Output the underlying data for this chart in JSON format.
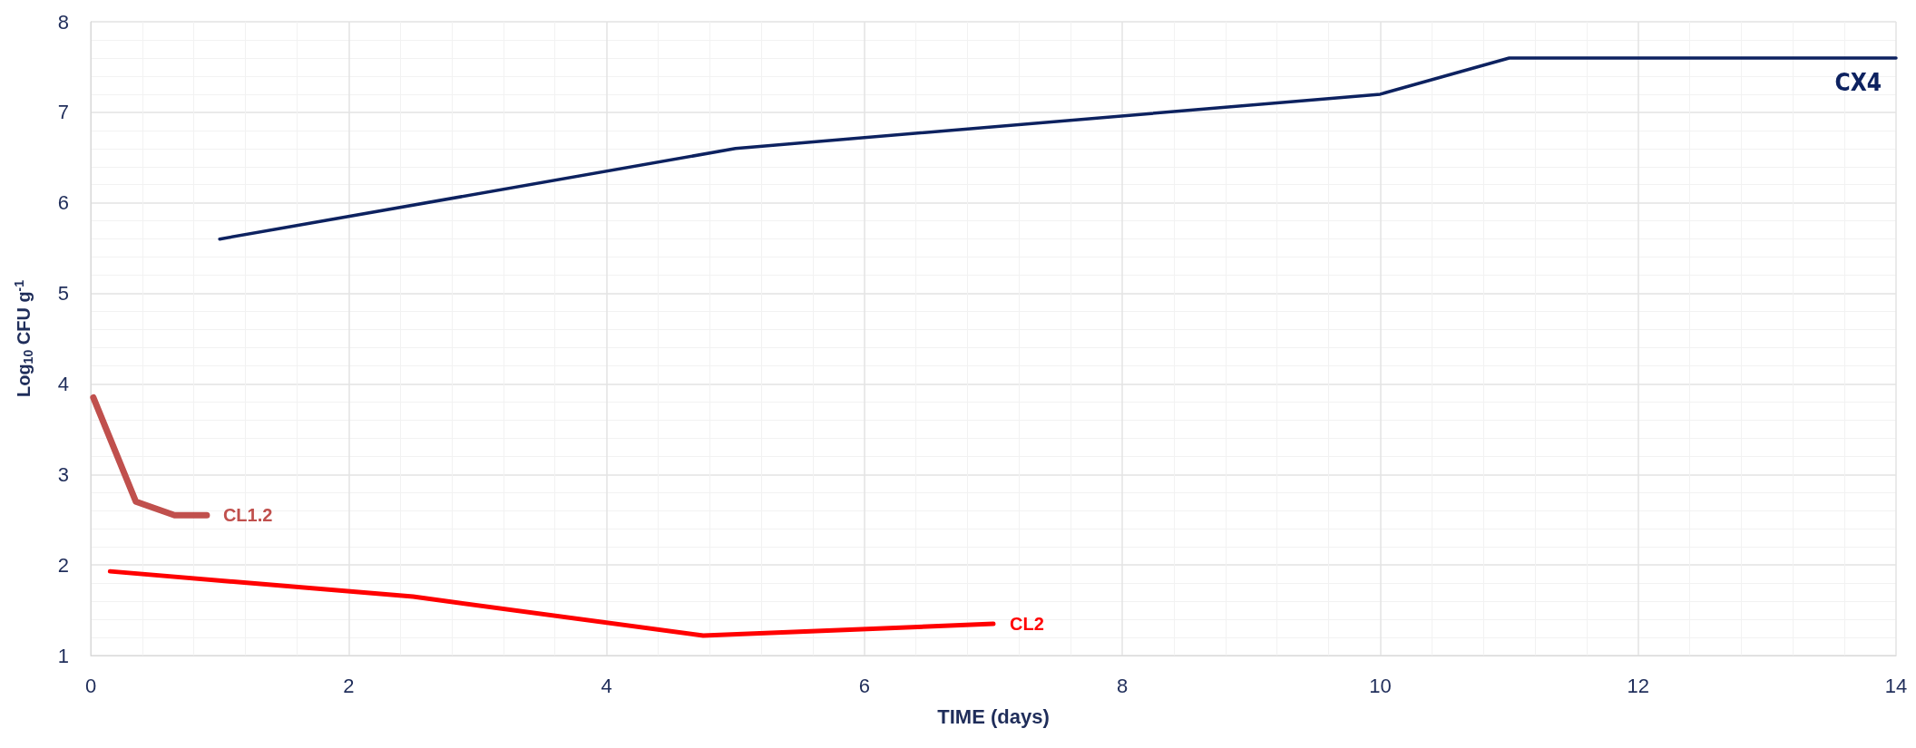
{
  "chart_data": {
    "type": "line",
    "xlabel": "TIME (days)",
    "ylabel": "Log$_{10}$ CFU g$^{-1}$",
    "xlim": [
      0,
      14
    ],
    "xticks": [
      0,
      2,
      4,
      6,
      8,
      10,
      12,
      14
    ],
    "ylim": [
      1,
      8
    ],
    "yticks": [
      1,
      2,
      3,
      4,
      5,
      6,
      7,
      8
    ],
    "grid": true,
    "marker": "none",
    "line_style": "solid",
    "series": [
      {
        "name": "CX4",
        "color": "#0d2260",
        "x": [
          1,
          5,
          10,
          11,
          14
        ],
        "values": [
          5.6,
          6.6,
          7.2,
          7.6,
          7.6
        ]
      },
      {
        "name": "CL1.2",
        "color": "#c0504d",
        "x": [
          0.02,
          0.35,
          0.65,
          0.9
        ],
        "values": [
          3.85,
          2.7,
          2.55,
          2.55
        ]
      },
      {
        "name": "CL2",
        "color": "#ff0000",
        "x": [
          0.15,
          2.5,
          4.75,
          7
        ],
        "values": [
          1.93,
          1.65,
          1.22,
          1.35
        ]
      }
    ]
  }
}
